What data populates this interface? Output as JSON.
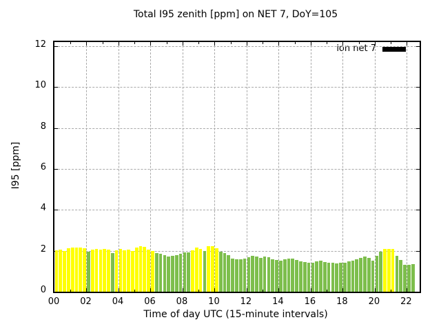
{
  "chart_data": {
    "type": "bar",
    "title": "Total I95 zenith [ppm] on NET 7, DoY=105",
    "xlabel": "Time of day UTC (15-minute intervals)",
    "ylabel": "I95 [ppm]",
    "legend": {
      "label": "ion net 7",
      "swatch_color": "#000000",
      "position": "inside-top-right"
    },
    "ylim": [
      0,
      12
    ],
    "ylim_draw": [
      0,
      12.2
    ],
    "x_hours_range": [
      0,
      22.8
    ],
    "yticks": [
      0,
      2,
      4,
      6,
      8,
      10,
      12
    ],
    "xticks": [
      {
        "h": 0,
        "label": "00"
      },
      {
        "h": 2,
        "label": "02"
      },
      {
        "h": 4,
        "label": "04"
      },
      {
        "h": 6,
        "label": "06"
      },
      {
        "h": 8,
        "label": "08"
      },
      {
        "h": 10,
        "label": "10"
      },
      {
        "h": 12,
        "label": "12"
      },
      {
        "h": 14,
        "label": "14"
      },
      {
        "h": 16,
        "label": "16"
      },
      {
        "h": 18,
        "label": "18"
      },
      {
        "h": 20,
        "label": "20"
      },
      {
        "h": 22,
        "label": "22"
      }
    ],
    "grid": "dashed",
    "grid_color": "#a8a8a8",
    "interval_minutes": 15,
    "color_map": {
      "y": "#ffff00",
      "g": "#7dbe4c"
    },
    "bars": [
      [
        "00:00",
        2.03,
        "y"
      ],
      [
        "00:15",
        2.06,
        "y"
      ],
      [
        "00:30",
        2.0,
        "y"
      ],
      [
        "00:45",
        2.13,
        "y"
      ],
      [
        "01:00",
        2.17,
        "y"
      ],
      [
        "01:15",
        2.17,
        "y"
      ],
      [
        "01:30",
        2.17,
        "y"
      ],
      [
        "01:45",
        2.14,
        "y"
      ],
      [
        "02:00",
        1.97,
        "g"
      ],
      [
        "02:15",
        2.06,
        "y"
      ],
      [
        "02:30",
        2.1,
        "y"
      ],
      [
        "02:45",
        2.06,
        "y"
      ],
      [
        "03:00",
        2.1,
        "y"
      ],
      [
        "03:15",
        2.06,
        "y"
      ],
      [
        "03:30",
        1.88,
        "g"
      ],
      [
        "03:45",
        2.03,
        "y"
      ],
      [
        "04:00",
        2.1,
        "y"
      ],
      [
        "04:15",
        2.03,
        "y"
      ],
      [
        "04:30",
        2.06,
        "y"
      ],
      [
        "04:45",
        2.0,
        "y"
      ],
      [
        "05:00",
        2.15,
        "y"
      ],
      [
        "05:15",
        2.22,
        "y"
      ],
      [
        "05:30",
        2.2,
        "y"
      ],
      [
        "05:45",
        2.06,
        "y"
      ],
      [
        "06:00",
        2.0,
        "y"
      ],
      [
        "06:15",
        1.9,
        "g"
      ],
      [
        "06:30",
        1.86,
        "g"
      ],
      [
        "06:45",
        1.79,
        "g"
      ],
      [
        "07:00",
        1.72,
        "g"
      ],
      [
        "07:15",
        1.75,
        "g"
      ],
      [
        "07:30",
        1.78,
        "g"
      ],
      [
        "07:45",
        1.86,
        "g"
      ],
      [
        "08:00",
        1.93,
        "g"
      ],
      [
        "08:15",
        1.92,
        "g"
      ],
      [
        "08:30",
        2.02,
        "y"
      ],
      [
        "08:45",
        2.15,
        "y"
      ],
      [
        "09:00",
        2.09,
        "y"
      ],
      [
        "09:15",
        2.0,
        "g"
      ],
      [
        "09:30",
        2.24,
        "y"
      ],
      [
        "09:45",
        2.21,
        "y"
      ],
      [
        "10:00",
        2.13,
        "y"
      ],
      [
        "10:15",
        1.95,
        "g"
      ],
      [
        "10:30",
        1.9,
        "g"
      ],
      [
        "10:45",
        1.8,
        "g"
      ],
      [
        "11:00",
        1.63,
        "g"
      ],
      [
        "11:15",
        1.6,
        "g"
      ],
      [
        "11:30",
        1.57,
        "g"
      ],
      [
        "11:45",
        1.62,
        "g"
      ],
      [
        "12:00",
        1.7,
        "g"
      ],
      [
        "12:15",
        1.76,
        "g"
      ],
      [
        "12:30",
        1.72,
        "g"
      ],
      [
        "12:45",
        1.66,
        "g"
      ],
      [
        "13:00",
        1.72,
        "g"
      ],
      [
        "13:15",
        1.69,
        "g"
      ],
      [
        "13:30",
        1.6,
        "g"
      ],
      [
        "13:45",
        1.56,
        "g"
      ],
      [
        "14:00",
        1.53,
        "g"
      ],
      [
        "14:15",
        1.59,
        "g"
      ],
      [
        "14:30",
        1.63,
        "g"
      ],
      [
        "14:45",
        1.63,
        "g"
      ],
      [
        "15:00",
        1.56,
        "g"
      ],
      [
        "15:15",
        1.49,
        "g"
      ],
      [
        "15:30",
        1.46,
        "g"
      ],
      [
        "15:45",
        1.43,
        "g"
      ],
      [
        "16:00",
        1.4,
        "g"
      ],
      [
        "16:15",
        1.5,
        "g"
      ],
      [
        "16:30",
        1.53,
        "g"
      ],
      [
        "16:45",
        1.46,
        "g"
      ],
      [
        "17:00",
        1.42,
        "g"
      ],
      [
        "17:15",
        1.4,
        "g"
      ],
      [
        "17:30",
        1.38,
        "g"
      ],
      [
        "17:45",
        1.4,
        "g"
      ],
      [
        "18:00",
        1.43,
        "g"
      ],
      [
        "18:15",
        1.47,
        "g"
      ],
      [
        "18:30",
        1.53,
        "g"
      ],
      [
        "18:45",
        1.59,
        "g"
      ],
      [
        "19:00",
        1.66,
        "g"
      ],
      [
        "19:15",
        1.72,
        "g"
      ],
      [
        "19:30",
        1.64,
        "g"
      ],
      [
        "19:45",
        1.51,
        "g"
      ],
      [
        "20:00",
        1.75,
        "g"
      ],
      [
        "20:15",
        1.95,
        "g"
      ],
      [
        "20:30",
        2.08,
        "y"
      ],
      [
        "20:45",
        2.08,
        "y"
      ],
      [
        "21:00",
        2.08,
        "y"
      ],
      [
        "21:15",
        1.75,
        "g"
      ],
      [
        "21:30",
        1.54,
        "g"
      ],
      [
        "21:45",
        1.31,
        "g"
      ],
      [
        "22:00",
        1.31,
        "g"
      ],
      [
        "22:15",
        1.34,
        "g"
      ]
    ]
  }
}
